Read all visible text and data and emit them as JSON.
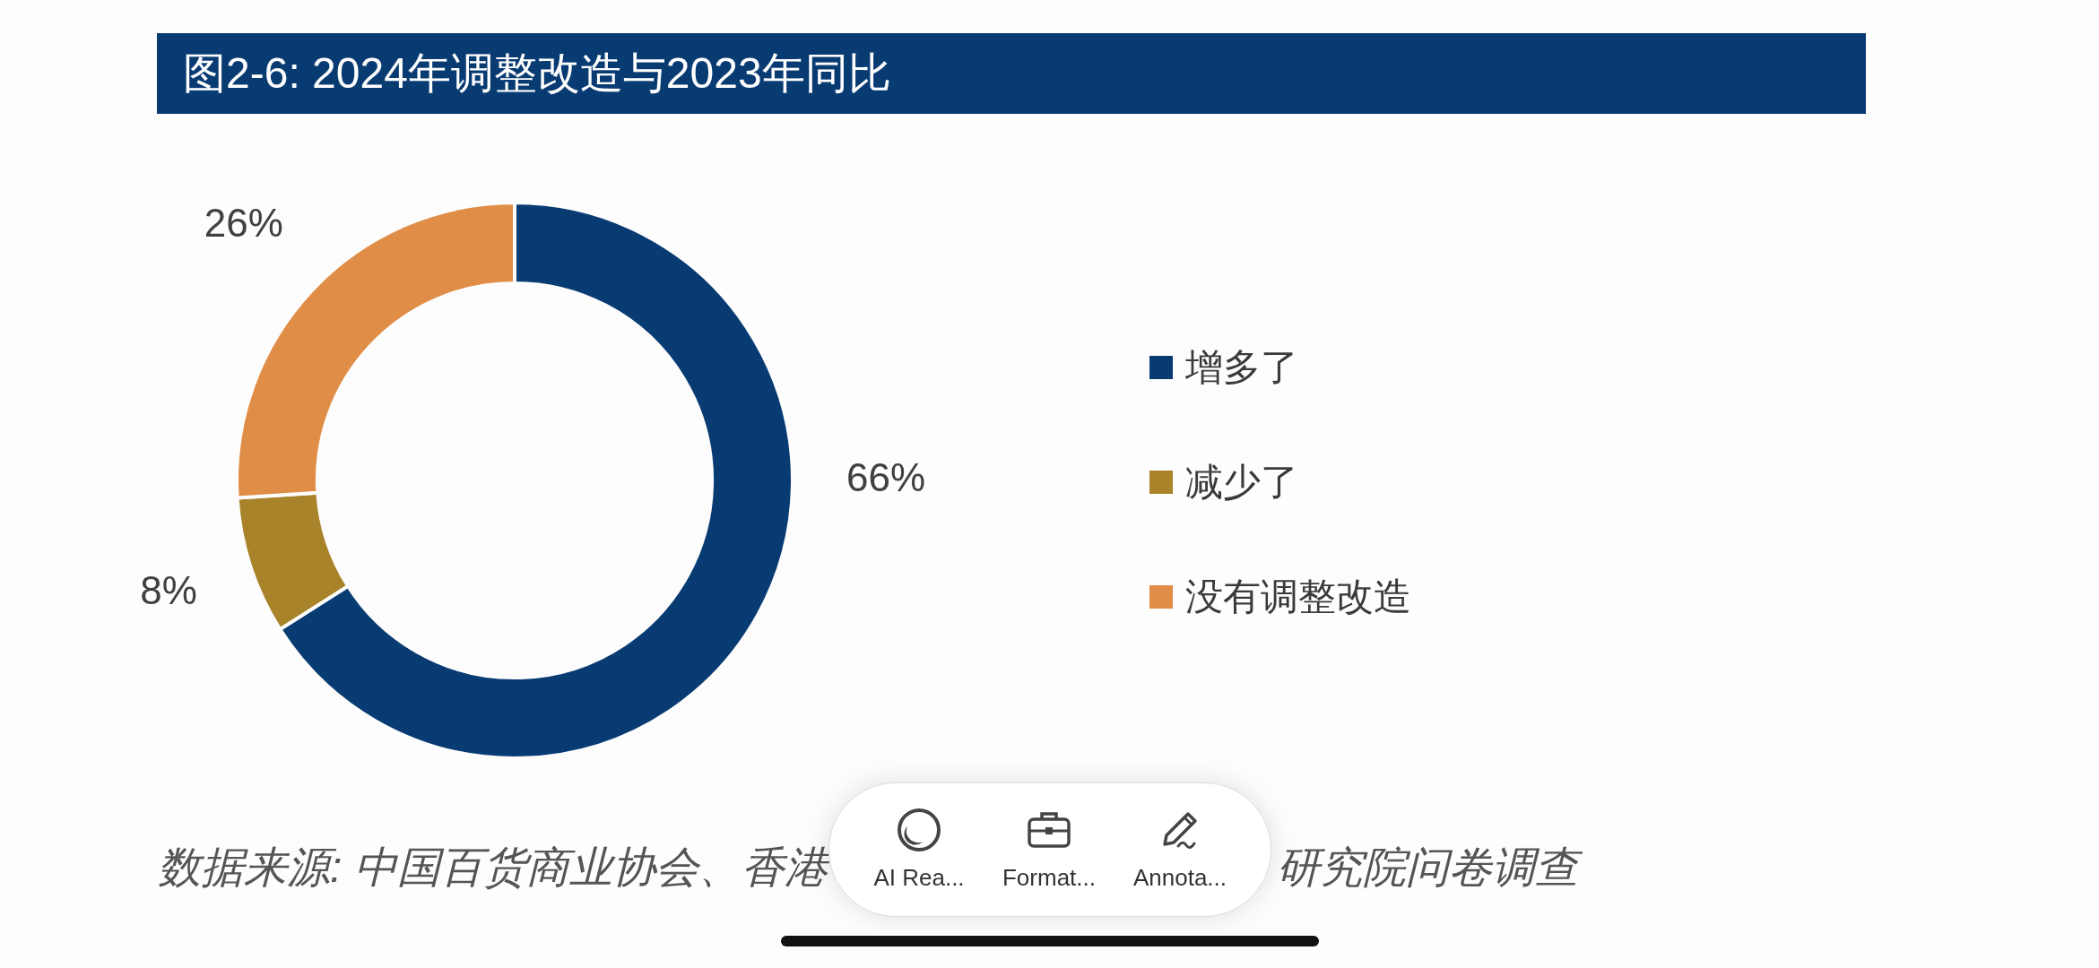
{
  "chart_data": {
    "type": "donut",
    "title": "图2-6: 2024年调整改造与2023年同比",
    "categories": [
      "增多了",
      "减少了",
      "没有调整改造"
    ],
    "values": [
      66,
      8,
      26
    ],
    "colors": [
      "#093b73",
      "#a8832a",
      "#e08e47"
    ],
    "value_labels": [
      "66%",
      "8%",
      "26%"
    ],
    "legend": "right",
    "annotations": [
      "数据来源: 中国百货商业协会、香港",
      "研究院问卷调查",
      "AI Rea...",
      "Format...",
      "Annota..."
    ]
  }
}
